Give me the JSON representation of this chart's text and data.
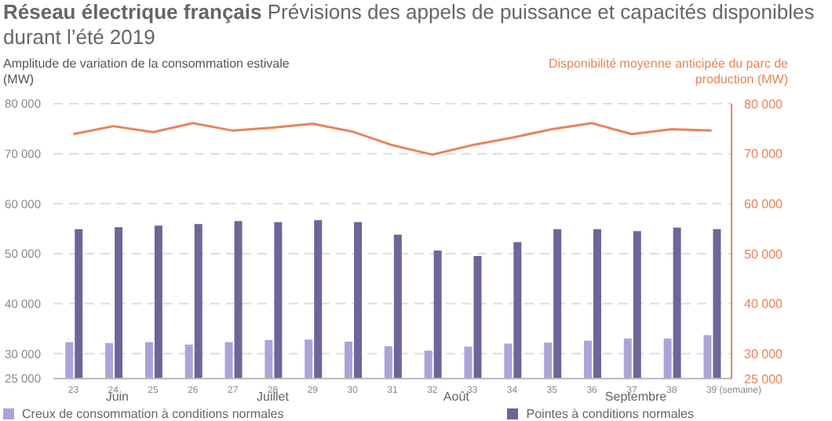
{
  "chart_data": {
    "type": "bar",
    "title": "Réseau électrique français",
    "subtitle": "Prévisions des appels de puissance et capacités disponibles durant l’été 2019",
    "ylabel": "Amplitude de variation de la consommation estivale (MW)",
    "y2label": "Disponibilité moyenne anticipée du parc de production (MW)",
    "xlabel": "(semaine)",
    "categories": [
      "23",
      "24",
      "25",
      "26",
      "27",
      "28",
      "29",
      "30",
      "31",
      "32",
      "33",
      "34",
      "35",
      "36",
      "37",
      "38",
      "39"
    ],
    "series": [
      {
        "name": "Creux de consommation à conditions normales",
        "color": "#aaa4d8",
        "values": [
          32300,
          32100,
          32300,
          31800,
          32300,
          32700,
          32800,
          32400,
          31500,
          30600,
          31400,
          32000,
          32200,
          32600,
          33000,
          33000,
          33700
        ]
      },
      {
        "name": "Pointes à conditions normales",
        "color": "#6c6699",
        "values": [
          54900,
          55300,
          55600,
          55900,
          56500,
          56300,
          56700,
          56300,
          53800,
          50600,
          49500,
          52300,
          54900,
          54900,
          54500,
          55200,
          54900
        ]
      },
      {
        "type": "line",
        "axis": "y2",
        "color": "#e8835a",
        "values": [
          73900,
          75500,
          74300,
          76100,
          74600,
          75200,
          76000,
          74400,
          71700,
          69800,
          71700,
          73200,
          74900,
          76100,
          73900,
          74900,
          74600
        ]
      }
    ],
    "ylim": [
      25000,
      80000
    ],
    "yticks": [
      25000,
      30000,
      40000,
      50000,
      60000,
      70000,
      80000
    ],
    "y2lim": [
      25000,
      80000
    ],
    "y2ticks": [
      25000,
      30000,
      40000,
      50000,
      60000,
      70000,
      80000
    ],
    "grid": "y",
    "legend": "bottom",
    "marker": "none",
    "annotations": [
      "Juin",
      "Juillet",
      "Août",
      "Septembre"
    ]
  }
}
